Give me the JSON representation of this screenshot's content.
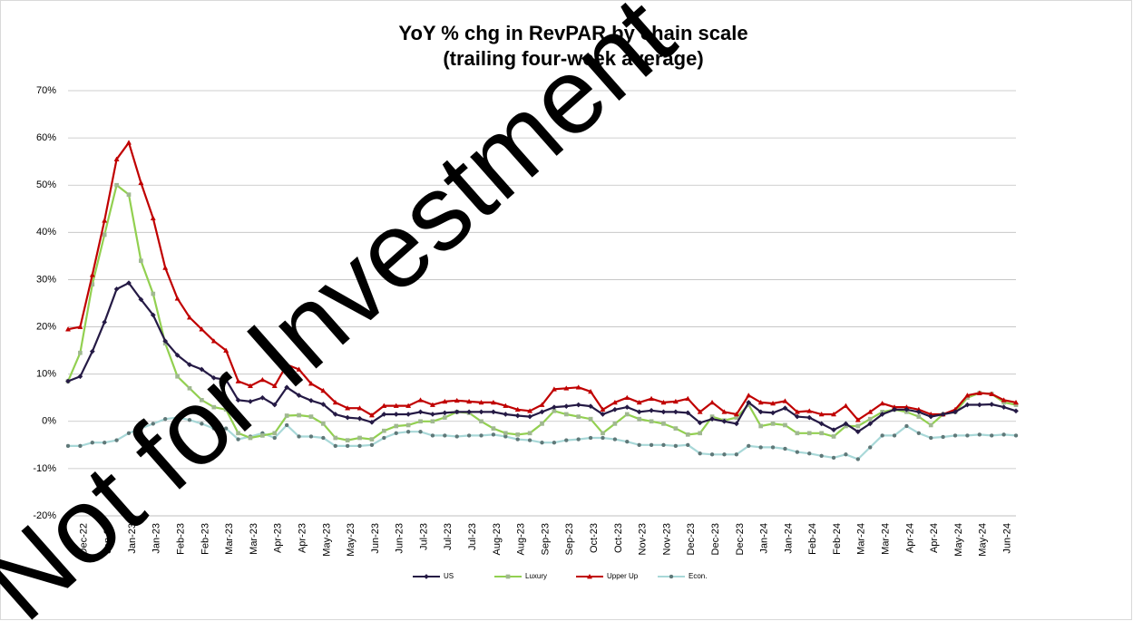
{
  "watermark": "Not for Investment",
  "chart_data": {
    "type": "line",
    "title": "YoY % chg in RevPAR by chain scale",
    "subtitle": "(trailing four-week average)",
    "categories": [
      null,
      "Dec-22",
      null,
      "Jan-23",
      null,
      "Jan-23",
      null,
      "Jan-23",
      null,
      "Feb-23",
      null,
      "Feb-23",
      null,
      "Mar-23",
      null,
      "Mar-23",
      null,
      "Apr-23",
      null,
      "Apr-23",
      null,
      "May-23",
      null,
      "May-23",
      null,
      "Jun-23",
      null,
      "Jun-23",
      null,
      "Jul-23",
      null,
      "Jul-23",
      null,
      "Jul-23",
      null,
      "Aug-23",
      null,
      "Aug-23",
      null,
      "Sep-23",
      null,
      "Sep-23",
      null,
      "Oct-23",
      null,
      "Oct-23",
      null,
      "Nov-23",
      null,
      "Nov-23",
      null,
      "Dec-23",
      null,
      "Dec-23",
      null,
      "Dec-23",
      null,
      "Jan-24",
      null,
      "Jan-24",
      null,
      "Feb-24",
      null,
      "Feb-24",
      null,
      "Mar-24",
      null,
      "Mar-24",
      null,
      "Apr-24",
      null,
      "Apr-24",
      null,
      "May-24",
      null,
      "May-24",
      null,
      "Jun-24",
      null
    ],
    "series": [
      {
        "name": "US",
        "color": "#251a45",
        "marker": "diamond",
        "marker_color": "#251a45",
        "values": [
          8.5,
          9.5,
          14.8,
          21,
          28,
          29.3,
          25.8,
          22.5,
          17,
          14,
          12,
          11,
          9.2,
          8.8,
          4.5,
          4.2,
          5,
          3.5,
          7.2,
          5.5,
          4.4,
          3.6,
          1.5,
          0.8,
          0.6,
          -0.2,
          1.5,
          1.5,
          1.5,
          2,
          1.5,
          1.8,
          2,
          2,
          2,
          2,
          1.5,
          1.2,
          1,
          2,
          3,
          3.2,
          3.5,
          3.2,
          1.5,
          2.5,
          3,
          2,
          2.3,
          2,
          2,
          1.8,
          -0.3,
          0.5,
          0,
          -0.5,
          4,
          2,
          1.8,
          2.8,
          1,
          0.8,
          -0.5,
          -1.8,
          -0.5,
          -2.2,
          -0.5,
          1.5,
          2.5,
          2.5,
          2,
          1,
          1.5,
          2,
          3.5,
          3.5,
          3.6,
          3,
          2.2
        ]
      },
      {
        "name": "Luxury",
        "color": "#92d050",
        "marker": "square",
        "marker_color": "#a0b890",
        "values": [
          8.5,
          14.5,
          29,
          39.5,
          50,
          48,
          34,
          27,
          16.5,
          9.5,
          7,
          4.5,
          3,
          2.5,
          -2.5,
          -3.5,
          -3,
          -2.5,
          1.2,
          1.3,
          1,
          -0.5,
          -3.5,
          -4,
          -3.5,
          -3.8,
          -2,
          -1,
          -0.8,
          0,
          0,
          0.8,
          2,
          1.8,
          0,
          -1.5,
          -2.5,
          -2.8,
          -2.5,
          -0.5,
          2.2,
          1.5,
          1,
          0.5,
          -2.5,
          -0.5,
          1.5,
          0.5,
          0,
          -0.5,
          -1.5,
          -2.8,
          -2.5,
          1,
          0.2,
          0.8,
          3.5,
          -1,
          -0.5,
          -0.8,
          -2.5,
          -2.5,
          -2.5,
          -3.2,
          -1,
          -1,
          0.5,
          2,
          2.5,
          2,
          1,
          -0.8,
          1.5,
          2,
          5,
          6,
          5.8,
          4,
          3.5
        ]
      },
      {
        "name": "Upper Up",
        "color": "#c00000",
        "marker": "triangle",
        "marker_color": "#c00000",
        "values": [
          19.5,
          20,
          31,
          42.5,
          55.5,
          59,
          50.5,
          43,
          32.5,
          26,
          22,
          19.5,
          17,
          15,
          8.5,
          7.5,
          8.8,
          7.5,
          12,
          11,
          8,
          6.5,
          4,
          2.8,
          2.8,
          1.3,
          3.3,
          3.3,
          3.3,
          4.5,
          3.5,
          4.2,
          4.4,
          4.2,
          4,
          4,
          3.3,
          2.5,
          2.2,
          3.5,
          6.8,
          7,
          7.2,
          6.3,
          2.5,
          4,
          5,
          4,
          4.8,
          4,
          4.2,
          4.8,
          2,
          4,
          2,
          1.5,
          5.5,
          4,
          3.8,
          4.3,
          2,
          2.2,
          1.5,
          1.5,
          3.3,
          0.3,
          2,
          3.8,
          3,
          3,
          2.5,
          1.5,
          1.5,
          2.5,
          5.5,
          6,
          5.8,
          4.5,
          4
        ]
      },
      {
        "name": "Econ.",
        "color": "#a8d8d8",
        "marker": "circle",
        "marker_color": "#5f7878",
        "values": [
          -5.2,
          -5.2,
          -4.5,
          -4.5,
          -4,
          -2.5,
          -1.5,
          -0.5,
          0.5,
          0.8,
          0.3,
          -0.5,
          -1.5,
          -1.5,
          -3.8,
          -3.2,
          -2.5,
          -3.5,
          -0.8,
          -3.2,
          -3.2,
          -3.5,
          -5.2,
          -5.2,
          -5.2,
          -5,
          -3.5,
          -2.5,
          -2.2,
          -2.2,
          -3,
          -3,
          -3.2,
          -3,
          -3,
          -2.8,
          -3.2,
          -3.8,
          -4,
          -4.5,
          -4.5,
          -4,
          -3.8,
          -3.5,
          -3.5,
          -3.8,
          -4.3,
          -5,
          -5,
          -5,
          -5.2,
          -5,
          -6.8,
          -7,
          -7,
          -7,
          -5.2,
          -5.5,
          -5.5,
          -5.8,
          -6.5,
          -6.8,
          -7.3,
          -7.7,
          -7,
          -8,
          -5.5,
          -3,
          -3,
          -1,
          -2.5,
          -3.5,
          -3.3,
          -3,
          -3,
          -2.8,
          -3,
          -2.8,
          -3
        ]
      }
    ],
    "ylim": [
      -20,
      70
    ],
    "yticks": [
      {
        "value": -20,
        "label": "-20%"
      },
      {
        "value": -10,
        "label": "-10%"
      },
      {
        "value": 0,
        "label": "0%"
      },
      {
        "value": 10,
        "label": "10%"
      },
      {
        "value": 20,
        "label": "20%"
      },
      {
        "value": 30,
        "label": "30%"
      },
      {
        "value": 40,
        "label": "40%"
      },
      {
        "value": 50,
        "label": "50%"
      },
      {
        "value": 60,
        "label": "60%"
      },
      {
        "value": 70,
        "label": "70%"
      }
    ],
    "grid": true,
    "legend": "bottom"
  }
}
